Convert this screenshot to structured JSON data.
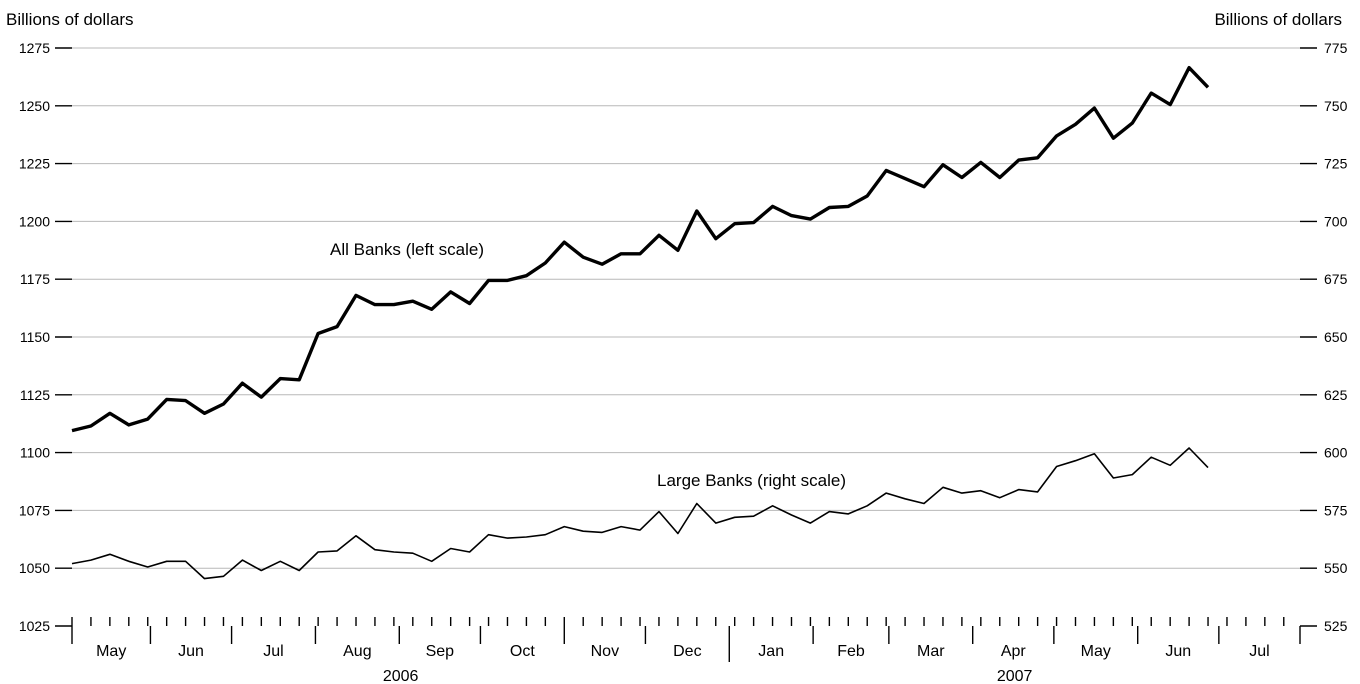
{
  "chart_data": {
    "type": "line",
    "ylabel_left": "Billions of dollars",
    "ylabel_right": "Billions of dollars",
    "ylim_left": [
      1025,
      1275
    ],
    "ylim_right": [
      525,
      775
    ],
    "yticks_left": [
      "1025",
      "1050",
      "1075",
      "1100",
      "1125",
      "1150",
      "1175",
      "1200",
      "1225",
      "1250",
      "1275"
    ],
    "yticks_right": [
      "525",
      "550",
      "575",
      "600",
      "625",
      "650",
      "675",
      "700",
      "725",
      "750",
      "775"
    ],
    "grid": true,
    "months": [
      "May",
      "Jun",
      "Jul",
      "Aug",
      "Sep",
      "Oct",
      "Nov",
      "Dec",
      "Jan",
      "Feb",
      "Mar",
      "Apr",
      "May",
      "Jun",
      "Jul"
    ],
    "years": [
      "2006",
      "2007"
    ],
    "x_start": "2006-05-03",
    "x_end": "2007-07-31",
    "week_dates": [
      "2006-05-03",
      "2006-05-10",
      "2006-05-17",
      "2006-05-24",
      "2006-05-31",
      "2006-06-07",
      "2006-06-14",
      "2006-06-21",
      "2006-06-28",
      "2006-07-05",
      "2006-07-12",
      "2006-07-19",
      "2006-07-26",
      "2006-08-02",
      "2006-08-09",
      "2006-08-16",
      "2006-08-23",
      "2006-08-30",
      "2006-09-06",
      "2006-09-13",
      "2006-09-20",
      "2006-09-27",
      "2006-10-04",
      "2006-10-11",
      "2006-10-18",
      "2006-10-25",
      "2006-11-01",
      "2006-11-08",
      "2006-11-15",
      "2006-11-22",
      "2006-11-29",
      "2006-12-06",
      "2006-12-13",
      "2006-12-20",
      "2006-12-27",
      "2007-01-03",
      "2007-01-10",
      "2007-01-17",
      "2007-01-24",
      "2007-01-31",
      "2007-02-07",
      "2007-02-14",
      "2007-02-21",
      "2007-02-28",
      "2007-03-07",
      "2007-03-14",
      "2007-03-21",
      "2007-03-28",
      "2007-04-04",
      "2007-04-11",
      "2007-04-18",
      "2007-04-25",
      "2007-05-02",
      "2007-05-09",
      "2007-05-16",
      "2007-05-23",
      "2007-05-30",
      "2007-06-06",
      "2007-06-13",
      "2007-06-20",
      "2007-06-27"
    ],
    "series": [
      {
        "name": "All Banks (left scale)",
        "axis": "left",
        "values": [
          1109.5,
          1111.5,
          1117,
          1112,
          1114.5,
          1123,
          1122.5,
          1117,
          1121,
          1130,
          1124,
          1132,
          1131.5,
          1151.5,
          1154.5,
          1168,
          1164,
          1164,
          1165.5,
          1162,
          1169.5,
          1164.5,
          1174.5,
          1174.5,
          1176.5,
          1182,
          1191,
          1184.5,
          1181.5,
          1186,
          1186,
          1194,
          1187.5,
          1204.5,
          1192.5,
          1199,
          1199.5,
          1206.5,
          1202.5,
          1201,
          1206,
          1206.5,
          1211,
          1222,
          1218.5,
          1215,
          1224.5,
          1219,
          1225.5,
          1219,
          1226.5,
          1227.5,
          1237,
          1242,
          1249,
          1236,
          1242.5,
          1255.5,
          1250.5,
          1266.5,
          1258
        ]
      },
      {
        "name": "Large Banks (right scale)",
        "axis": "right",
        "values": [
          552,
          553.5,
          556,
          553,
          550.5,
          553,
          553,
          545.5,
          546.5,
          553.5,
          549,
          553,
          549,
          557,
          557.5,
          564,
          558,
          557,
          556.5,
          553,
          558.5,
          557,
          564.5,
          563,
          563.5,
          564.5,
          568,
          566,
          565.5,
          568,
          566.5,
          574.5,
          565,
          578,
          569.5,
          572,
          572.5,
          577,
          573,
          569.5,
          574.5,
          573.5,
          577,
          582.5,
          580,
          578,
          585,
          582.5,
          583.5,
          580.5,
          584,
          583,
          594,
          596.5,
          599.5,
          589,
          590.5,
          598,
          594.5,
          602,
          593.5
        ]
      }
    ],
    "annotations": [
      "All Banks (left scale)",
      "Large Banks (right scale)"
    ]
  }
}
